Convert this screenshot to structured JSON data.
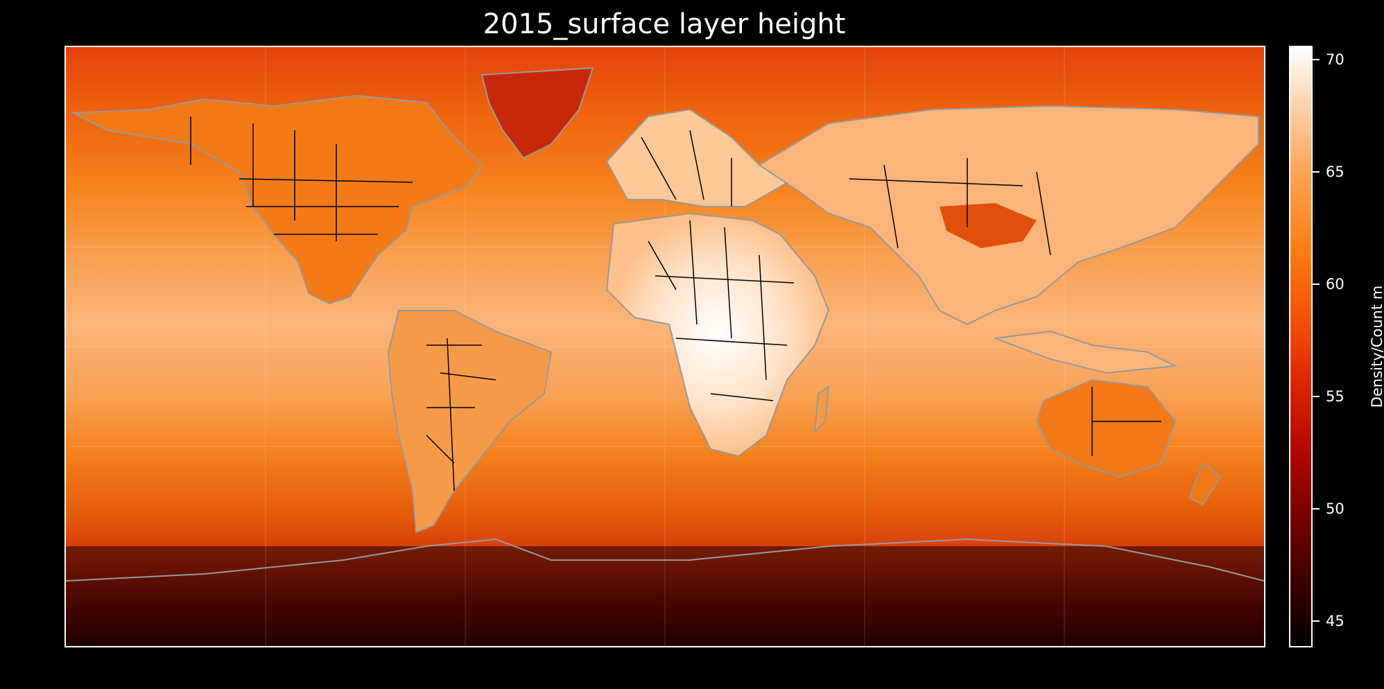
{
  "title": "2015_surface layer height",
  "colorbar": {
    "label": "Density/Count m",
    "ticks": [
      "70",
      "65",
      "60",
      "55",
      "50",
      "45"
    ],
    "range": [
      43.8,
      70.6
    ],
    "colormap": "gist_heat"
  },
  "map": {
    "projection": "PlateCarree",
    "extent": [
      -180,
      180,
      -90,
      90
    ],
    "coastline_color": "#999999",
    "border_color": "#000000",
    "gridlines": true
  }
}
